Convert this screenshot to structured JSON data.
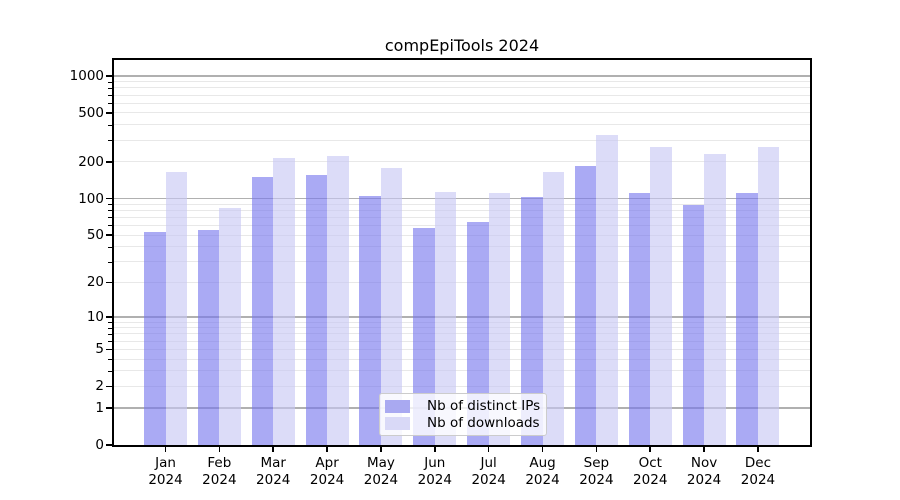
{
  "title": "compEpiTools 2024",
  "chart_data": {
    "type": "bar",
    "title": "compEpiTools 2024",
    "categories": [
      "Jan",
      "Feb",
      "Mar",
      "Apr",
      "May",
      "Jun",
      "Jul",
      "Aug",
      "Sep",
      "Oct",
      "Nov",
      "Dec"
    ],
    "x_year": "2024",
    "series": [
      {
        "name": "Nb of distinct IPs",
        "color": "rgba(118,118,238,0.62)",
        "solid_color": "#a9a9f1",
        "values": [
          53,
          55,
          150,
          156,
          104,
          57,
          64,
          102,
          185,
          110,
          89,
          112
        ]
      },
      {
        "name": "Nb of downloads",
        "color": "rgba(198,198,243,0.62)",
        "solid_color": "#d9d9f7",
        "values": [
          165,
          83,
          215,
          224,
          178,
          113,
          110,
          166,
          330,
          264,
          231,
          264
        ]
      }
    ],
    "xlabel": "",
    "ylabel": "",
    "y_scale": "log1p",
    "y_ticks": [
      0,
      1,
      2,
      5,
      10,
      20,
      50,
      100,
      200,
      500,
      1000
    ],
    "ylim": [
      0,
      1350
    ],
    "grid": "major and minor horizontal gridlines",
    "legend_position": "lower center inside plot",
    "frame_color": "#000000",
    "major_grid_color": "#b0b0b0",
    "minor_grid_color": "#e8e8e8"
  }
}
